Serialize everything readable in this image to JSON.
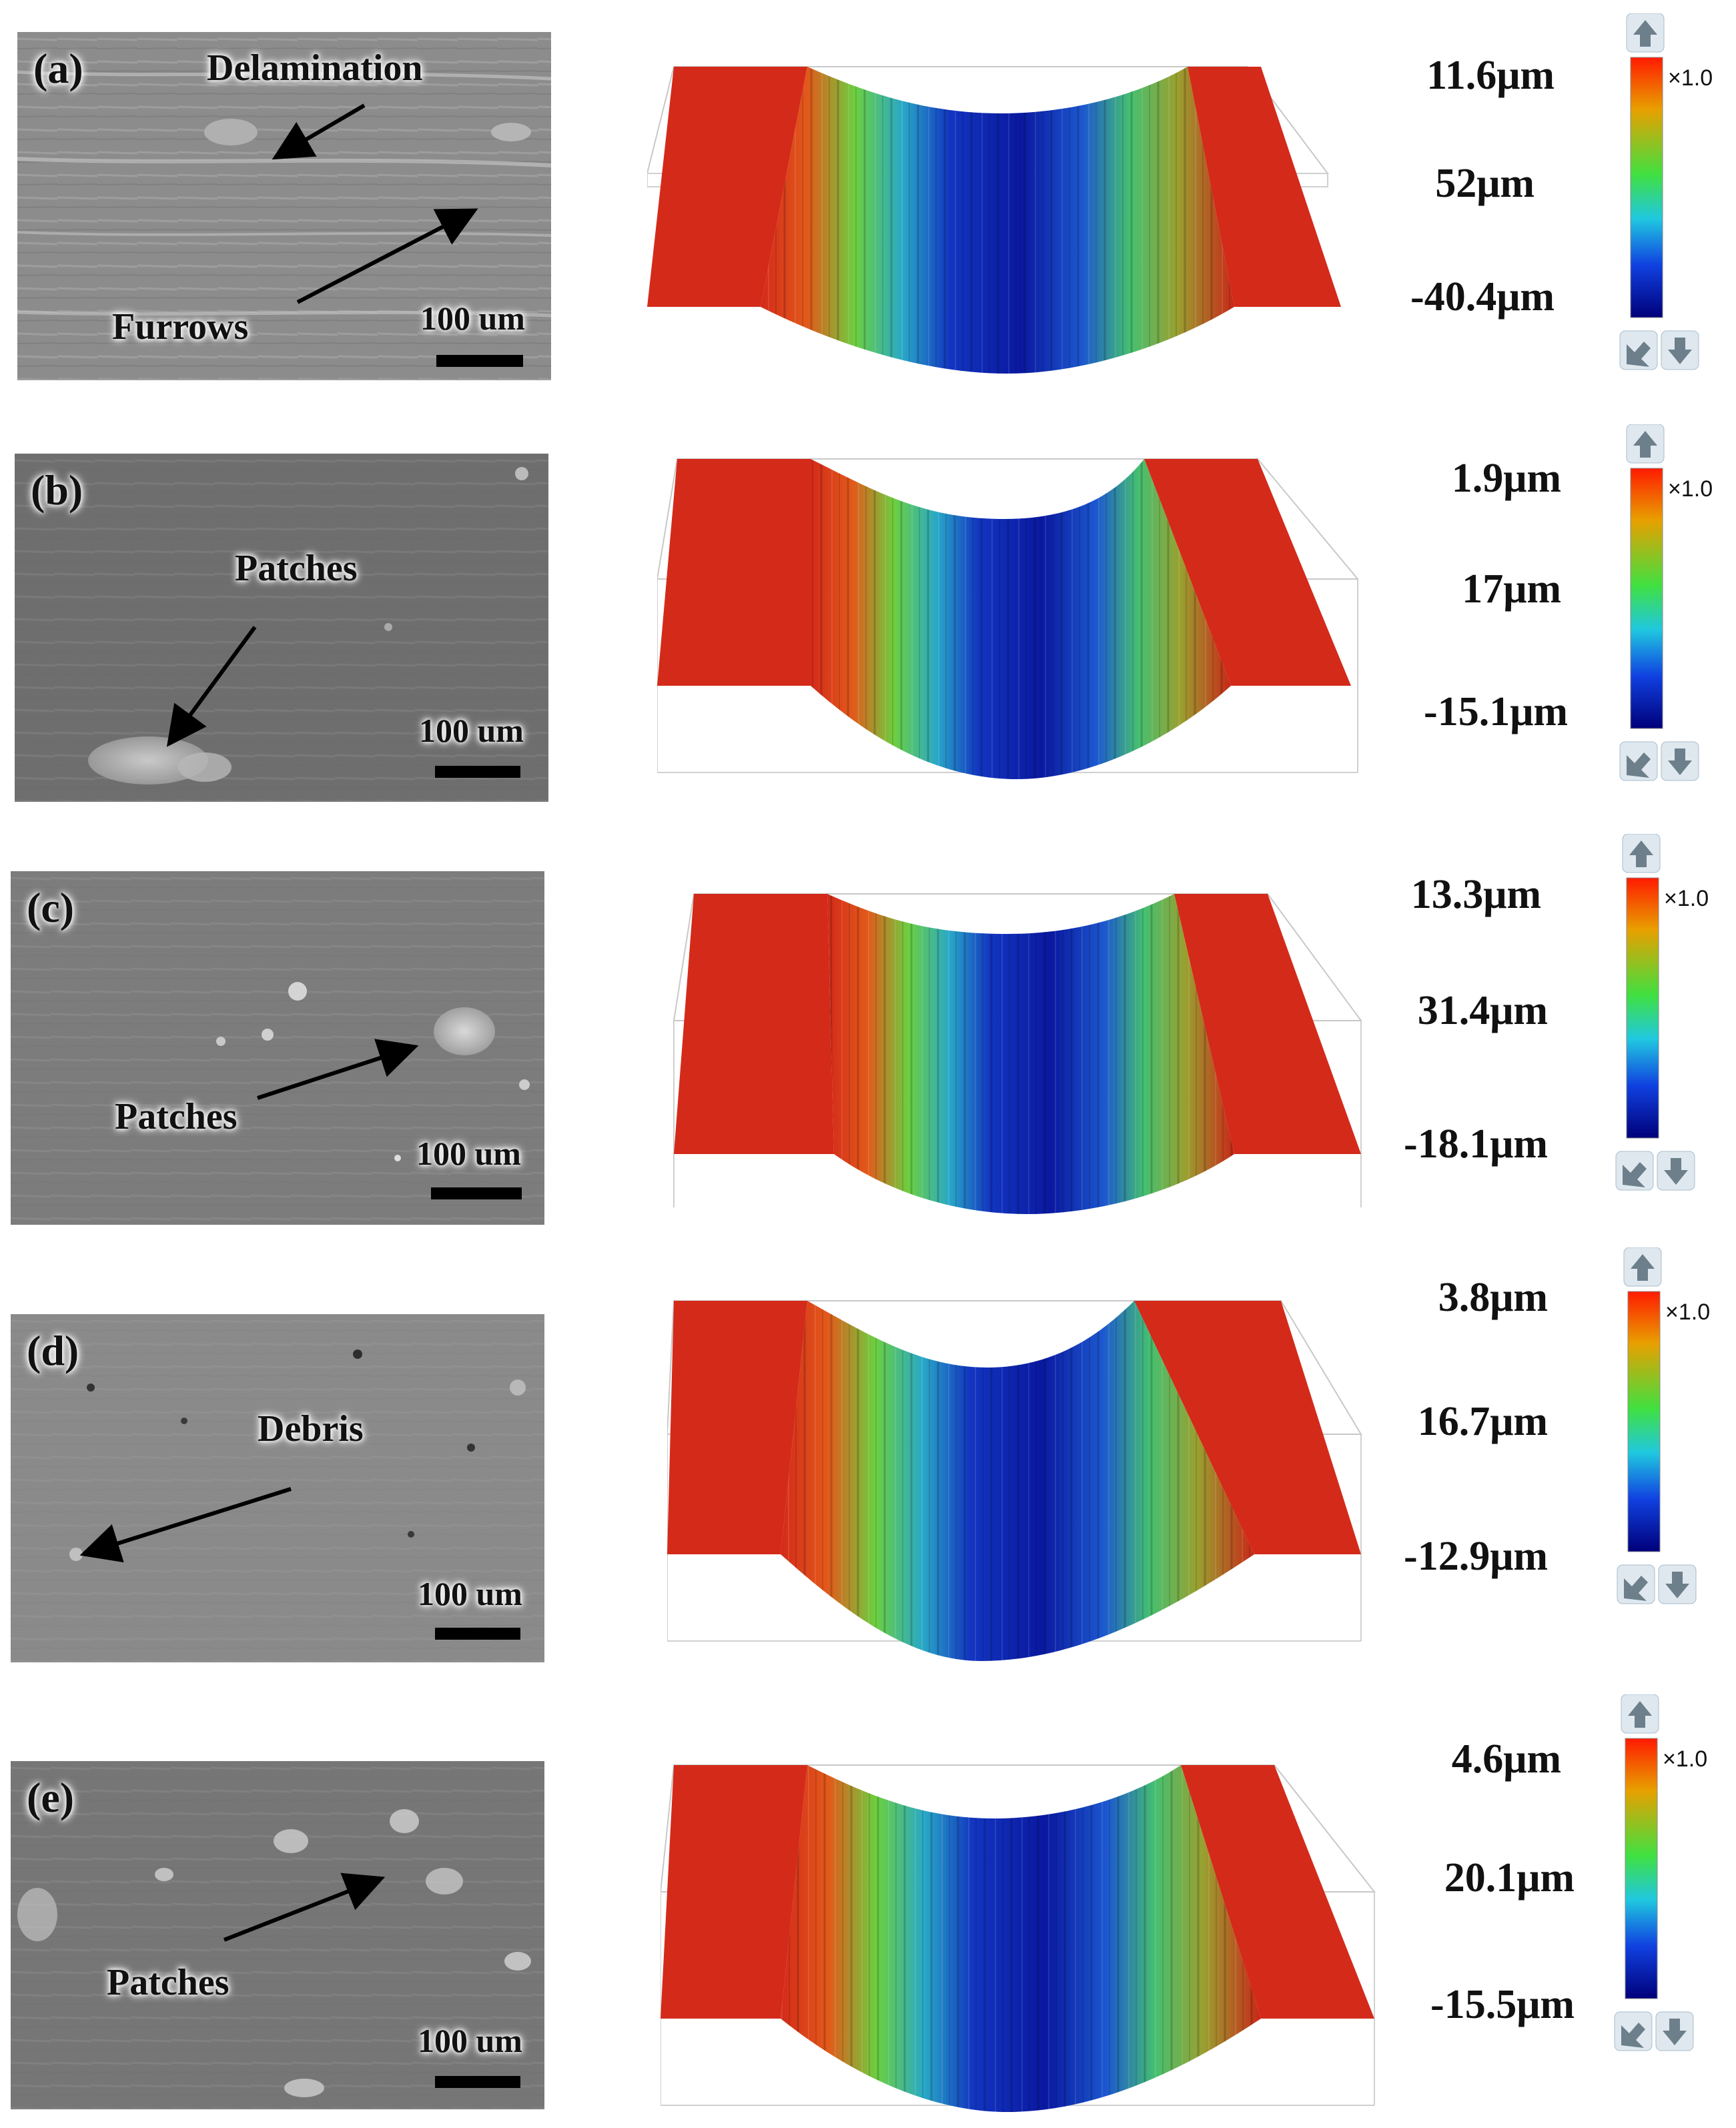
{
  "panels": [
    {
      "label": "(a)",
      "annotations": [
        {
          "text": "Delamination"
        },
        {
          "text": "Furrows"
        }
      ],
      "scale_text": "100 um",
      "z_max": "11.6μm",
      "z_range": "52μm",
      "z_min": "-40.4μm",
      "multiplier": "×1.0"
    },
    {
      "label": "(b)",
      "annotations": [
        {
          "text": "Patches"
        }
      ],
      "scale_text": "100 um",
      "z_max": "1.9μm",
      "z_range": "17μm",
      "z_min": "-15.1μm",
      "multiplier": "×1.0"
    },
    {
      "label": "(c)",
      "annotations": [
        {
          "text": "Patches"
        }
      ],
      "scale_text": "100 um",
      "z_max": "13.3μm",
      "z_range": "31.4μm",
      "z_min": "-18.1μm",
      "multiplier": "×1.0"
    },
    {
      "label": "(d)",
      "annotations": [
        {
          "text": "Debris"
        }
      ],
      "scale_text": "100 um",
      "z_max": "3.8μm",
      "z_range": "16.7μm",
      "z_min": "-12.9μm",
      "multiplier": "×1.0"
    },
    {
      "label": "(e)",
      "annotations": [
        {
          "text": "Patches"
        }
      ],
      "scale_text": "100 um",
      "z_max": "4.6μm",
      "z_range": "20.1μm",
      "z_min": "-15.5μm",
      "multiplier": "×1.0"
    }
  ],
  "colors": {
    "high": "#d42a1a",
    "mid": "#4ccf46",
    "low": "#0a18a0"
  },
  "icons": [
    "arrow-up-icon",
    "rotate-icon",
    "arrow-down-icon"
  ]
}
